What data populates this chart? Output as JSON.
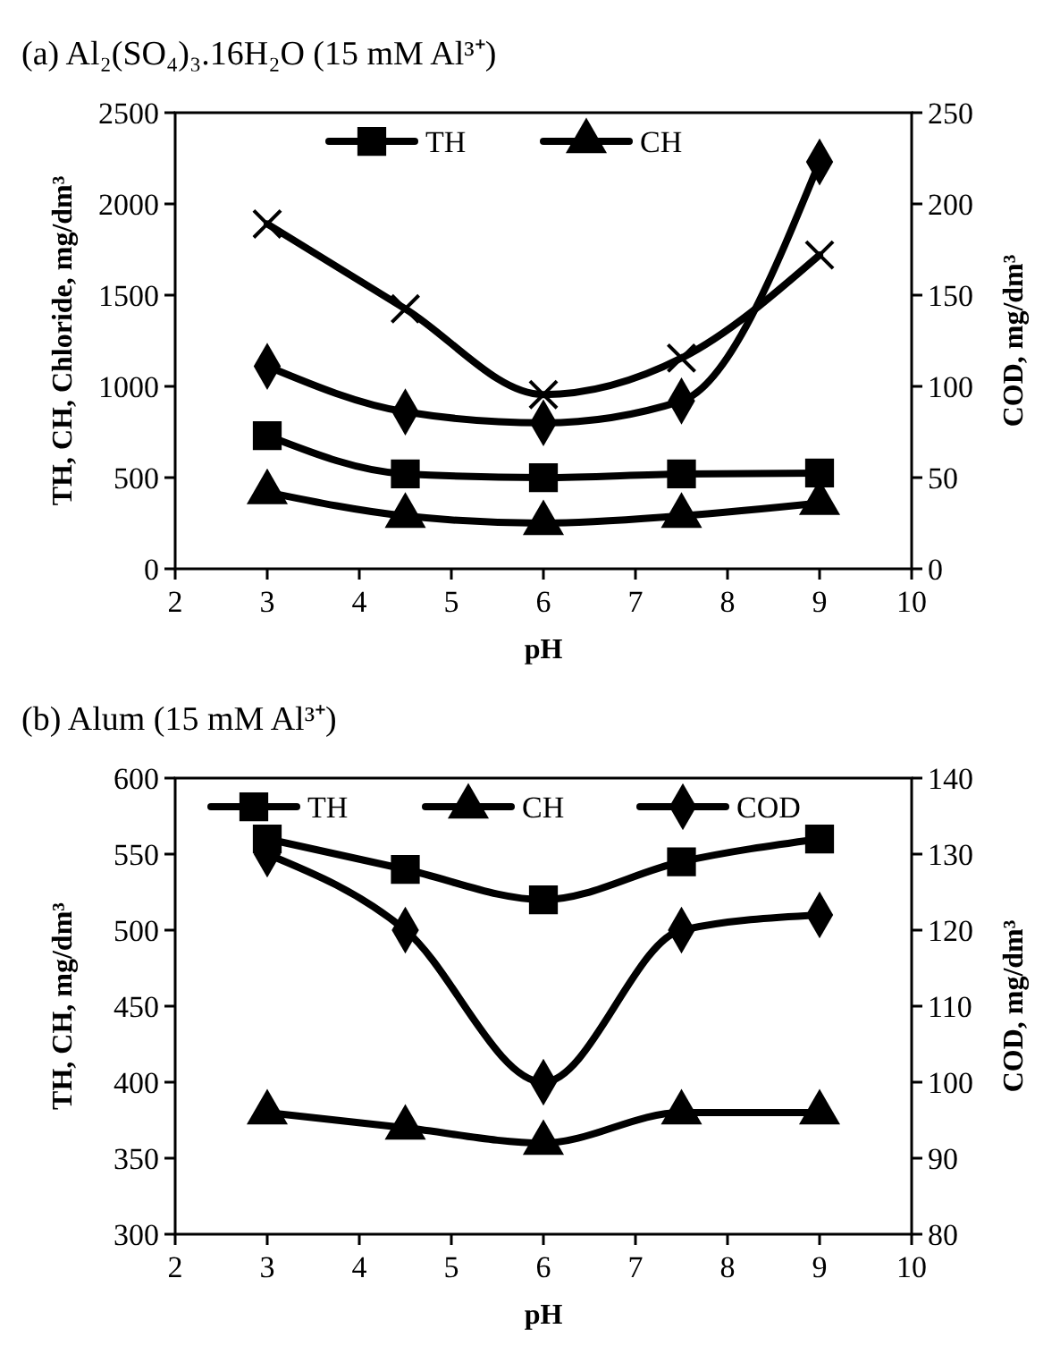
{
  "chart_data": [
    {
      "type": "line",
      "title": "(a) Al₂(SO₄)₃.16H₂O (15 mM Al³⁺)",
      "xlabel": "pH",
      "ylabel": "TH, CH, Chloride, mg/dm³",
      "y2label": "COD, mg/dm³",
      "x": [
        3,
        4.5,
        6,
        7.5,
        9
      ],
      "xlim": [
        2,
        10
      ],
      "xticks": [
        2,
        3,
        4,
        5,
        6,
        7,
        8,
        9,
        10
      ],
      "ylim": [
        0,
        2500
      ],
      "yticks": [
        0,
        500,
        1000,
        1500,
        2000,
        2500
      ],
      "y2lim": [
        0,
        250
      ],
      "y2ticks": [
        0,
        50,
        100,
        150,
        200,
        250
      ],
      "legend": "top",
      "grid": false,
      "series": [
        {
          "name": "TH",
          "color": "#000000",
          "marker": "square",
          "values": [
            730,
            520,
            500,
            520,
            525
          ]
        },
        {
          "name": "CH",
          "color": "#000000",
          "marker": "triangle",
          "values": [
            420,
            290,
            250,
            290,
            360
          ]
        },
        {
          "color": "#000000",
          "marker": "cross",
          "values": [
            1890,
            1425,
            955,
            1155,
            1720
          ]
        },
        {
          "color": "#000000",
          "marker": "diamond",
          "axis": "y2",
          "values": [
            111,
            86,
            80,
            92,
            223
          ]
        }
      ]
    },
    {
      "type": "line",
      "title": "(b) Alum (15 mM Al³⁺)",
      "xlabel": "pH",
      "ylabel": "TH, CH, mg/dm³",
      "y2label": "COD, mg/dm³",
      "x": [
        3,
        4.5,
        6,
        7.5,
        9
      ],
      "xlim": [
        2,
        10
      ],
      "xticks": [
        2,
        3,
        4,
        5,
        6,
        7,
        8,
        9,
        10
      ],
      "ylim": [
        300,
        600
      ],
      "yticks": [
        300,
        350,
        400,
        450,
        500,
        550,
        600
      ],
      "y2lim": [
        80,
        140
      ],
      "y2ticks": [
        80,
        90,
        100,
        110,
        120,
        130,
        140
      ],
      "legend": "top left",
      "grid": false,
      "series": [
        {
          "name": "TH",
          "color": "#000000",
          "marker": "square",
          "values": [
            560,
            540,
            520,
            545,
            560
          ]
        },
        {
          "name": "CH",
          "color": "#000000",
          "marker": "triangle",
          "values": [
            380,
            370,
            360,
            380,
            380
          ]
        },
        {
          "name": "COD",
          "color": "#000000",
          "marker": "diamond",
          "axis": "y2",
          "values": [
            130,
            120,
            100,
            120,
            122
          ]
        }
      ]
    }
  ]
}
